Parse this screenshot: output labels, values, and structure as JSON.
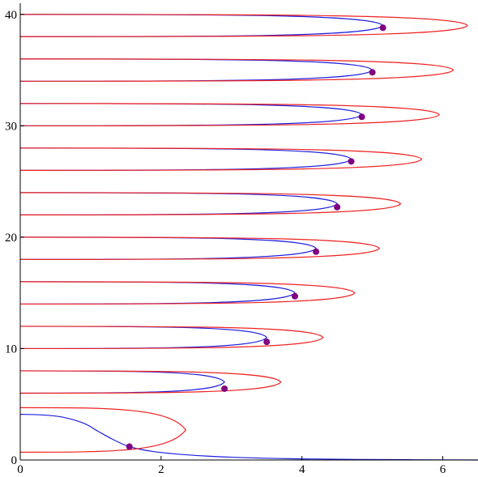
{
  "chart_data": {
    "type": "line",
    "title": "",
    "xlabel": "",
    "ylabel": "",
    "xlim": [
      0,
      6.5
    ],
    "ylim": [
      0,
      41
    ],
    "grid": false,
    "legend": "none",
    "x_ticks": [
      {
        "value": 0,
        "label": "0"
      },
      {
        "value": 2,
        "label": "2"
      },
      {
        "value": 4,
        "label": "4"
      },
      {
        "value": 6,
        "label": "6"
      }
    ],
    "y_ticks": [
      {
        "value": 0,
        "label": "0"
      },
      {
        "value": 10,
        "label": "10"
      },
      {
        "value": 20,
        "label": "20"
      },
      {
        "value": 30,
        "label": "30"
      },
      {
        "value": 40,
        "label": "40"
      }
    ],
    "colors": {
      "blue_curve": "#1f1fdd",
      "red_curve": "#ee2222",
      "intersection_point": "#800080"
    },
    "blue_curve": {
      "base": {
        "x": [
          0,
          0.3,
          0.6,
          0.9,
          1.1,
          1.3,
          1.55,
          1.9,
          2.4,
          3.0,
          3.8,
          4.8,
          6.5
        ],
        "y": [
          4.1,
          4.05,
          3.85,
          3.3,
          2.6,
          1.9,
          1.2,
          0.75,
          0.45,
          0.25,
          0.12,
          0.05,
          0.0
        ]
      },
      "loops": [
        {
          "tip_x": 2.9,
          "center_y": 7.0,
          "half_height": 1.0
        },
        {
          "tip_x": 3.5,
          "center_y": 11.0,
          "half_height": 1.0
        },
        {
          "tip_x": 3.9,
          "center_y": 15.0,
          "half_height": 1.0
        },
        {
          "tip_x": 4.2,
          "center_y": 19.0,
          "half_height": 1.0
        },
        {
          "tip_x": 4.5,
          "center_y": 23.0,
          "half_height": 1.0
        },
        {
          "tip_x": 4.7,
          "center_y": 27.0,
          "half_height": 1.0
        },
        {
          "tip_x": 4.85,
          "center_y": 31.0,
          "half_height": 1.0
        },
        {
          "tip_x": 5.0,
          "center_y": 35.0,
          "half_height": 1.0
        },
        {
          "tip_x": 5.15,
          "center_y": 39.0,
          "half_height": 1.0
        }
      ]
    },
    "red_curve": {
      "loops": [
        {
          "tip_x": 2.35,
          "center_y": 2.7,
          "half_height": 2.0
        },
        {
          "tip_x": 3.7,
          "center_y": 7.0,
          "half_height": 1.0
        },
        {
          "tip_x": 4.3,
          "center_y": 11.0,
          "half_height": 1.0
        },
        {
          "tip_x": 4.75,
          "center_y": 15.0,
          "half_height": 1.0
        },
        {
          "tip_x": 5.1,
          "center_y": 19.0,
          "half_height": 1.0
        },
        {
          "tip_x": 5.4,
          "center_y": 23.0,
          "half_height": 1.0
        },
        {
          "tip_x": 5.7,
          "center_y": 27.0,
          "half_height": 1.0
        },
        {
          "tip_x": 5.95,
          "center_y": 31.0,
          "half_height": 1.0
        },
        {
          "tip_x": 6.15,
          "center_y": 35.0,
          "half_height": 1.0
        },
        {
          "tip_x": 6.35,
          "center_y": 39.0,
          "half_height": 1.0
        }
      ]
    },
    "points": [
      {
        "x": 1.55,
        "y": 1.2
      },
      {
        "x": 2.9,
        "y": 6.4
      },
      {
        "x": 3.5,
        "y": 10.6
      },
      {
        "x": 3.9,
        "y": 14.7
      },
      {
        "x": 4.2,
        "y": 18.7
      },
      {
        "x": 4.5,
        "y": 22.7
      },
      {
        "x": 4.7,
        "y": 26.8
      },
      {
        "x": 4.85,
        "y": 30.8
      },
      {
        "x": 5.0,
        "y": 34.8
      },
      {
        "x": 5.15,
        "y": 38.8
      }
    ]
  }
}
